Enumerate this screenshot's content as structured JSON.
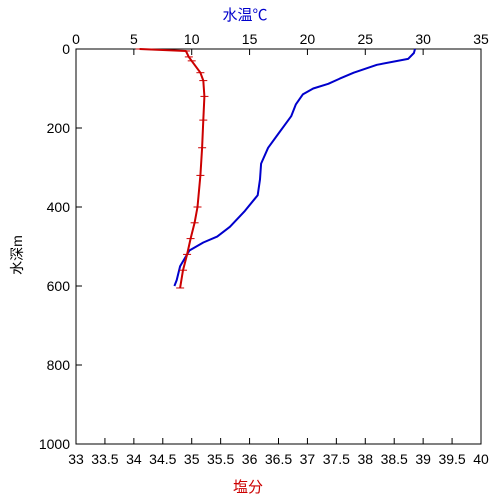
{
  "chart_data": {
    "type": "line",
    "title": "",
    "y_axis": {
      "label": "水深m",
      "range": [
        0,
        1000
      ],
      "inverted": true,
      "ticks": [
        0,
        200,
        400,
        600,
        800,
        1000
      ],
      "tick_labels": [
        "0",
        "200",
        "400",
        "600",
        "800",
        "1000"
      ]
    },
    "top_axis": {
      "label": "水温℃",
      "label_color": "#0000cc",
      "range": [
        0,
        35
      ],
      "ticks": [
        0,
        5,
        10,
        15,
        20,
        25,
        30,
        35
      ],
      "tick_labels": [
        "0",
        "5",
        "10",
        "15",
        "20",
        "25",
        "30",
        "35"
      ]
    },
    "bottom_axis": {
      "label": "塩分",
      "label_color": "#cc0000",
      "range": [
        33,
        40
      ],
      "ticks": [
        33,
        33.5,
        34,
        34.5,
        35,
        35.5,
        36,
        36.5,
        37,
        37.5,
        38,
        38.5,
        39,
        39.5,
        40
      ],
      "tick_labels": [
        "33",
        "33.5",
        "34",
        "34.5",
        "35",
        "35.5",
        "36",
        "36.5",
        "37",
        "37.5",
        "38",
        "38.5",
        "39",
        "39.5",
        "40"
      ]
    },
    "grid": false,
    "series": [
      {
        "axis": "top",
        "color": "#0000cc",
        "markers": false,
        "points": [
          [
            29.3,
            0
          ],
          [
            29.2,
            10
          ],
          [
            28.7,
            25
          ],
          [
            26.0,
            40
          ],
          [
            24.0,
            60
          ],
          [
            22.8,
            75
          ],
          [
            21.8,
            88
          ],
          [
            20.5,
            100
          ],
          [
            19.6,
            115
          ],
          [
            19.0,
            140
          ],
          [
            18.6,
            170
          ],
          [
            17.6,
            210
          ],
          [
            16.6,
            250
          ],
          [
            16.0,
            290
          ],
          [
            15.9,
            330
          ],
          [
            15.7,
            370
          ],
          [
            14.6,
            410
          ],
          [
            13.3,
            450
          ],
          [
            12.2,
            475
          ],
          [
            11.0,
            490
          ],
          [
            9.8,
            510
          ],
          [
            9.0,
            550
          ],
          [
            8.7,
            585
          ],
          [
            8.5,
            600
          ]
        ]
      },
      {
        "axis": "bottom",
        "color": "#cc0000",
        "markers": true,
        "points": [
          [
            34.1,
            0
          ],
          [
            34.9,
            5
          ],
          [
            34.95,
            20
          ],
          [
            35.0,
            30
          ],
          [
            35.15,
            60
          ],
          [
            35.2,
            80
          ],
          [
            35.22,
            120
          ],
          [
            35.2,
            180
          ],
          [
            35.18,
            250
          ],
          [
            35.15,
            320
          ],
          [
            35.1,
            400
          ],
          [
            35.05,
            440
          ],
          [
            34.98,
            480
          ],
          [
            34.92,
            520
          ],
          [
            34.85,
            560
          ],
          [
            34.8,
            605
          ]
        ]
      }
    ]
  }
}
